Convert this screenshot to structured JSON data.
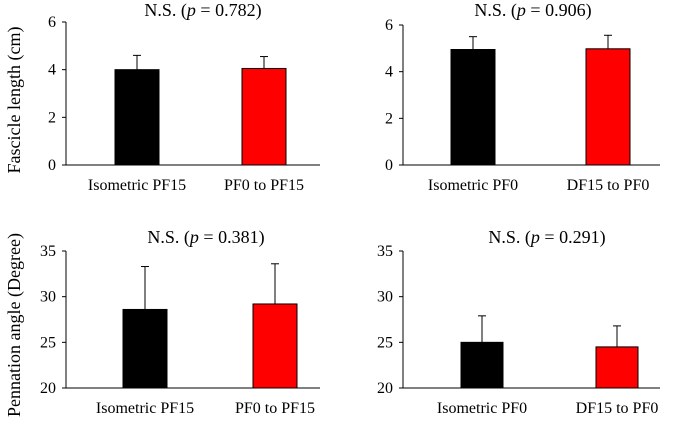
{
  "row_labels": [
    "Fascicle length (cm)",
    "Pennation angle (Degree)"
  ],
  "chart_data": [
    {
      "type": "bar",
      "title": {
        "prefix": "N.S. (",
        "italic": "p",
        "suffix": " = 0.782)"
      },
      "categories": [
        "Isometric PF15",
        "PF0 to PF15"
      ],
      "values": [
        4.0,
        4.05
      ],
      "errors": [
        0.6,
        0.5
      ],
      "colors": [
        "#000000",
        "#ff0000"
      ],
      "ylim": [
        0,
        6
      ],
      "yticks": [
        0,
        2,
        4,
        6
      ],
      "ylabel": "Fascicle length (cm)"
    },
    {
      "type": "bar",
      "title": {
        "prefix": "N.S. (",
        "italic": "p",
        "suffix": " = 0.906)"
      },
      "categories": [
        "Isometric PF0",
        "DF15 to PF0"
      ],
      "values": [
        4.95,
        4.98
      ],
      "errors": [
        0.55,
        0.58
      ],
      "colors": [
        "#000000",
        "#ff0000"
      ],
      "ylim": [
        0,
        6
      ],
      "yticks": [
        0,
        2,
        4,
        6
      ],
      "ylabel": ""
    },
    {
      "type": "bar",
      "title": {
        "prefix": "N.S. (",
        "italic": "p",
        "suffix": " = 0.381)"
      },
      "categories": [
        "Isometric PF15",
        "PF0 to PF15"
      ],
      "values": [
        28.6,
        29.2
      ],
      "errors": [
        4.7,
        4.4
      ],
      "colors": [
        "#000000",
        "#ff0000"
      ],
      "ylim": [
        20,
        35
      ],
      "yticks": [
        20,
        25,
        30,
        35
      ],
      "ylabel": "Pennation angle (Degree)"
    },
    {
      "type": "bar",
      "title": {
        "prefix": "N.S. (",
        "italic": "p",
        "suffix": " = 0.291)"
      },
      "categories": [
        "Isometric PF0",
        "DF15 to PF0"
      ],
      "values": [
        25.0,
        24.5
      ],
      "errors": [
        2.9,
        2.3
      ],
      "colors": [
        "#000000",
        "#ff0000"
      ],
      "ylim": [
        20,
        35
      ],
      "yticks": [
        20,
        25,
        30,
        35
      ],
      "ylabel": ""
    }
  ]
}
